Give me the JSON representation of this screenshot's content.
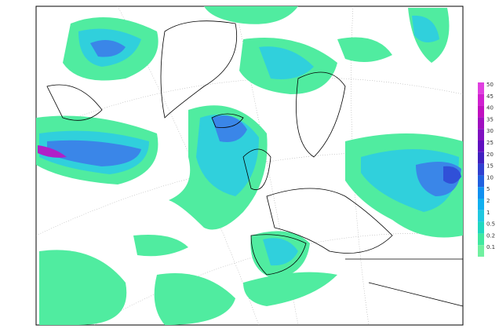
{
  "legend": {
    "labels": [
      50,
      45,
      40,
      35,
      30,
      25,
      20,
      15,
      10,
      5,
      2,
      1,
      0.5,
      0.2,
      0.1
    ],
    "colors": [
      "#e040e0",
      "#d020d0",
      "#c010c0",
      "#a010c0",
      "#8010c0",
      "#6010c0",
      "#4020c0",
      "#3040d0",
      "#2060e0",
      "#1090f0",
      "#10b0f0",
      "#20c8e0",
      "#20d8c0",
      "#40e8a0",
      "#70f0a0"
    ]
  }
}
